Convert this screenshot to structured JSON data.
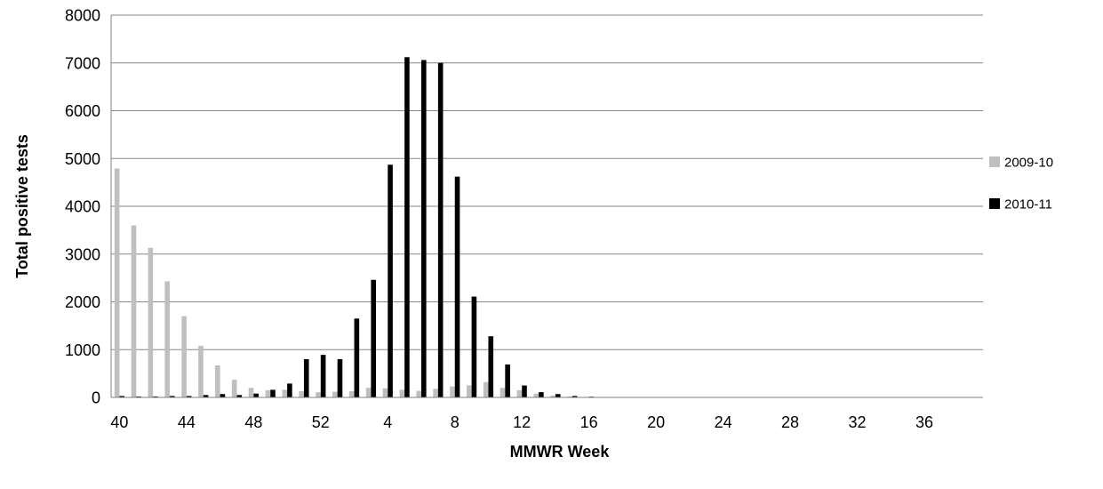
{
  "chart_data": {
    "type": "bar",
    "title": "",
    "xlabel": "MMWR Week",
    "ylabel": "Total positive tests",
    "ylim": [
      0,
      8000
    ],
    "yticks": [
      0,
      1000,
      2000,
      3000,
      4000,
      5000,
      6000,
      7000,
      8000
    ],
    "grid": true,
    "legend_position": "right",
    "weeks": [
      40,
      41,
      42,
      43,
      44,
      45,
      46,
      47,
      48,
      49,
      50,
      51,
      52,
      1,
      2,
      3,
      4,
      5,
      6,
      7,
      8,
      9,
      10,
      11,
      12,
      13,
      14,
      15,
      16,
      17,
      18,
      19,
      20,
      21,
      22,
      23,
      24,
      25,
      26,
      27,
      28,
      29,
      30,
      31,
      32,
      33,
      34,
      35,
      36,
      37,
      38,
      39
    ],
    "xtick_labels": [
      "40",
      "44",
      "48",
      "52",
      "4",
      "8",
      "12",
      "16",
      "20",
      "24",
      "28",
      "32",
      "36"
    ],
    "xtick_every": 4,
    "series": [
      {
        "name": "2009-10",
        "color": "#bfbfbf",
        "values": [
          4790,
          3600,
          3130,
          2430,
          1700,
          1080,
          670,
          370,
          200,
          150,
          160,
          130,
          110,
          120,
          130,
          200,
          190,
          160,
          140,
          180,
          230,
          250,
          320,
          200,
          150,
          80,
          40,
          20,
          10,
          5,
          5,
          5,
          3,
          3,
          3,
          2,
          2,
          2,
          2,
          2,
          2,
          2,
          2,
          2,
          2,
          2,
          2,
          2,
          2,
          2,
          2,
          2
        ]
      },
      {
        "name": "2010-11",
        "color": "#000000",
        "values": [
          30,
          20,
          20,
          30,
          30,
          50,
          70,
          50,
          80,
          160,
          290,
          800,
          890,
          800,
          1650,
          2460,
          4870,
          7120,
          7060,
          7000,
          4620,
          2110,
          1280,
          690,
          250,
          110,
          70,
          30,
          15,
          8,
          5,
          4,
          3,
          2,
          2,
          2,
          2,
          1,
          1,
          1,
          1,
          1,
          1,
          1,
          1,
          1,
          1,
          1,
          1,
          1,
          1,
          1
        ]
      }
    ]
  }
}
